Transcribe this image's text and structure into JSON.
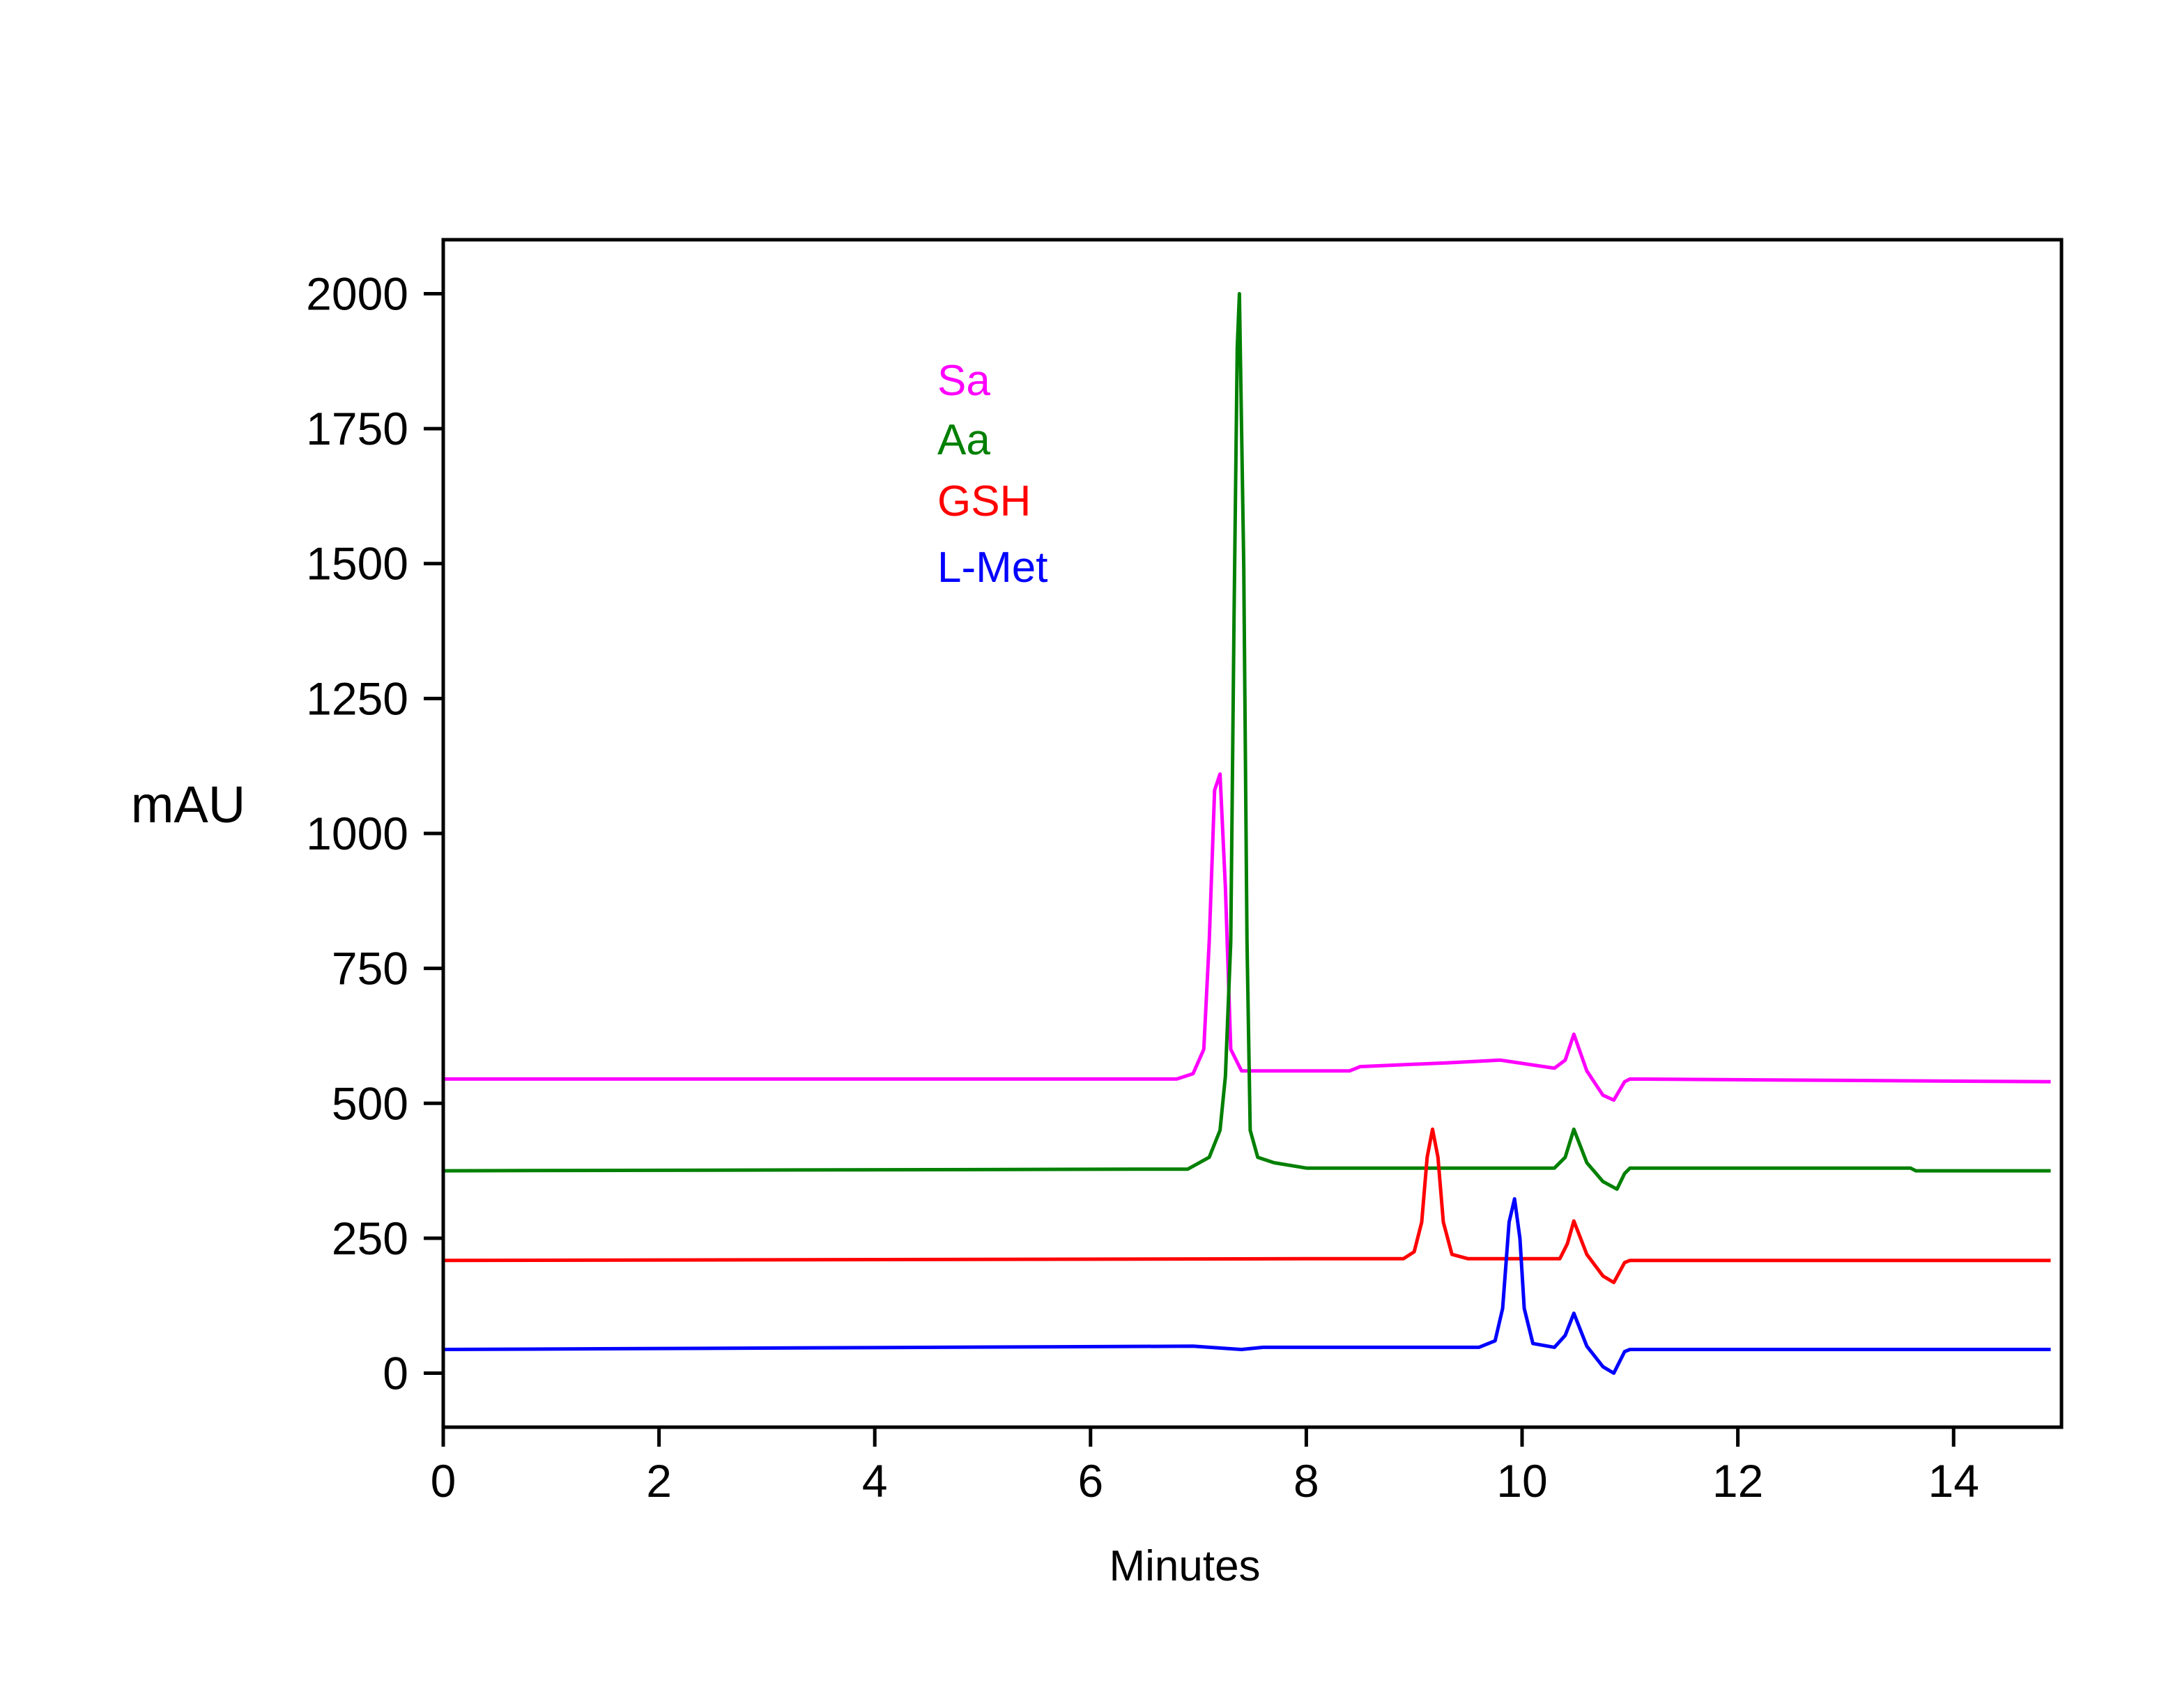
{
  "chart_data": {
    "type": "line",
    "title": "",
    "xlabel": "Minutes",
    "ylabel": "mAU",
    "xlim": [
      0,
      15
    ],
    "ylim": [
      -100,
      2100
    ],
    "xticks": [
      0,
      2,
      4,
      6,
      8,
      10,
      12,
      14
    ],
    "yticks": [
      0,
      250,
      500,
      750,
      1000,
      1250,
      1500,
      1750,
      2000
    ],
    "grid": false,
    "legend_placement": "top-left, inside plot",
    "series": [
      {
        "name": "Sa",
        "color": "#ff00ff",
        "points": [
          [
            0,
            545
          ],
          [
            6.8,
            545
          ],
          [
            6.95,
            555
          ],
          [
            7.05,
            600
          ],
          [
            7.1,
            800
          ],
          [
            7.15,
            1080
          ],
          [
            7.2,
            1110
          ],
          [
            7.25,
            900
          ],
          [
            7.3,
            600
          ],
          [
            7.4,
            560
          ],
          [
            8.4,
            560
          ],
          [
            8.5,
            568
          ],
          [
            9.3,
            575
          ],
          [
            9.8,
            580
          ],
          [
            10.3,
            565
          ],
          [
            10.4,
            580
          ],
          [
            10.48,
            628
          ],
          [
            10.6,
            560
          ],
          [
            10.75,
            515
          ],
          [
            10.85,
            506
          ],
          [
            10.95,
            540
          ],
          [
            11.0,
            545
          ],
          [
            14.9,
            540
          ]
        ]
      },
      {
        "name": "Aa",
        "color": "#008000",
        "points": [
          [
            0,
            375
          ],
          [
            6.4,
            378
          ],
          [
            6.9,
            378
          ],
          [
            7.1,
            400
          ],
          [
            7.2,
            450
          ],
          [
            7.25,
            550
          ],
          [
            7.3,
            800
          ],
          [
            7.33,
            1400
          ],
          [
            7.36,
            1900
          ],
          [
            7.38,
            2000
          ],
          [
            7.42,
            1500
          ],
          [
            7.45,
            800
          ],
          [
            7.48,
            450
          ],
          [
            7.55,
            400
          ],
          [
            7.7,
            390
          ],
          [
            8.0,
            380
          ],
          [
            10.3,
            380
          ],
          [
            10.4,
            400
          ],
          [
            10.48,
            452
          ],
          [
            10.6,
            390
          ],
          [
            10.75,
            355
          ],
          [
            10.88,
            341
          ],
          [
            10.95,
            370
          ],
          [
            11.0,
            380
          ],
          [
            13.6,
            380
          ],
          [
            13.65,
            375
          ],
          [
            14.9,
            375
          ]
        ]
      },
      {
        "name": "GSH",
        "color": "#ff0000",
        "points": [
          [
            0,
            209
          ],
          [
            8.0,
            212
          ],
          [
            8.9,
            212
          ],
          [
            9.0,
            225
          ],
          [
            9.07,
            280
          ],
          [
            9.12,
            400
          ],
          [
            9.17,
            452
          ],
          [
            9.22,
            400
          ],
          [
            9.27,
            280
          ],
          [
            9.35,
            220
          ],
          [
            9.5,
            212
          ],
          [
            10.35,
            212
          ],
          [
            10.42,
            240
          ],
          [
            10.48,
            282
          ],
          [
            10.6,
            220
          ],
          [
            10.75,
            180
          ],
          [
            10.85,
            168
          ],
          [
            10.95,
            205
          ],
          [
            11.0,
            209
          ],
          [
            14.9,
            209
          ]
        ]
      },
      {
        "name": "L-Met",
        "color": "#0000ff",
        "points": [
          [
            0,
            44
          ],
          [
            6.95,
            50
          ],
          [
            7.4,
            44
          ],
          [
            7.6,
            48
          ],
          [
            9.6,
            48
          ],
          [
            9.75,
            60
          ],
          [
            9.82,
            120
          ],
          [
            9.88,
            280
          ],
          [
            9.93,
            323
          ],
          [
            9.98,
            250
          ],
          [
            10.02,
            120
          ],
          [
            10.1,
            55
          ],
          [
            10.3,
            48
          ],
          [
            10.4,
            70
          ],
          [
            10.48,
            111
          ],
          [
            10.6,
            50
          ],
          [
            10.75,
            12
          ],
          [
            10.85,
            0
          ],
          [
            10.95,
            40
          ],
          [
            11.0,
            44
          ],
          [
            14.9,
            44
          ]
        ]
      }
    ]
  }
}
